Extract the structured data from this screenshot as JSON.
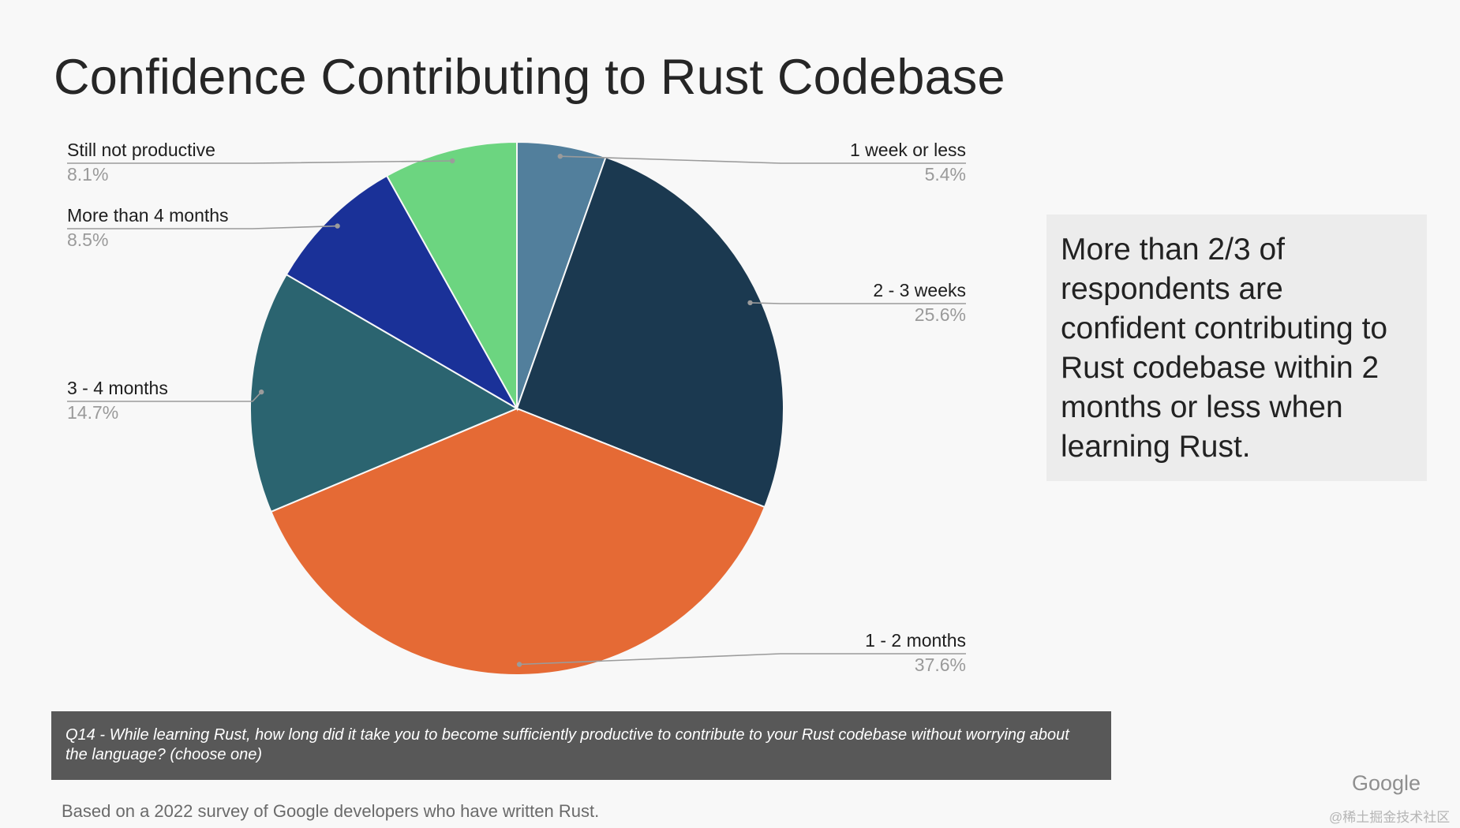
{
  "slide": {
    "title": "Confidence Contributing to Rust Codebase",
    "callout": "More than 2/3 of respondents are confident contributing to Rust codebase within 2 months or less when learning Rust.",
    "question": "Q14 - While learning Rust, how long did it take you to become sufficiently productive to contribute to your Rust codebase without worrying about the language? (choose one)",
    "footnote": "Based on a 2022 survey of Google developers who have written Rust.",
    "logo": "Google",
    "watermark": "@稀土掘金技术社区"
  },
  "chart_data": {
    "type": "pie",
    "title": "Confidence Contributing to Rust Codebase",
    "start_angle": "12 o'clock",
    "direction": "clockwise",
    "slices": [
      {
        "label": "1 week or less",
        "value": 5.4,
        "display": "5.4%",
        "color": "#527f9c",
        "label_side": "right"
      },
      {
        "label": "2 - 3 weeks",
        "value": 25.6,
        "display": "25.6%",
        "color": "#1b3950",
        "label_side": "right"
      },
      {
        "label": "1 - 2 months",
        "value": 37.6,
        "display": "37.6%",
        "color": "#e56a35",
        "label_side": "right"
      },
      {
        "label": "3 - 4 months",
        "value": 14.7,
        "display": "14.7%",
        "color": "#2b6470",
        "label_side": "left"
      },
      {
        "label": "More than 4 months",
        "value": 8.5,
        "display": "8.5%",
        "color": "#1a3198",
        "label_side": "left"
      },
      {
        "label": "Still not productive",
        "value": 8.1,
        "display": "8.1%",
        "color": "#6cd580",
        "label_side": "left"
      }
    ]
  }
}
